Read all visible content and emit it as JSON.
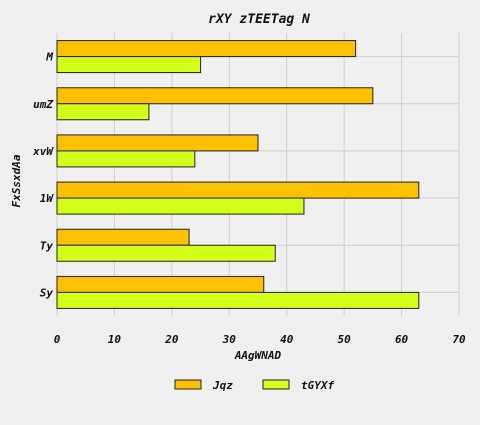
{
  "chart_data": {
    "type": "bar",
    "orientation": "horizontal",
    "title": "rXY zTEETag N",
    "xlabel": "AAgWNAD",
    "ylabel": "FxSsxdAa",
    "categories": [
      "M",
      "umZ",
      "xvW",
      "1W",
      "Ty",
      "Sy"
    ],
    "series": [
      {
        "name": "Jqz",
        "color": "#ffc000",
        "values": [
          52,
          55,
          35,
          63,
          23,
          36
        ]
      },
      {
        "name": "tGYXf",
        "color": "#d4ff1a",
        "values": [
          25,
          16,
          24,
          43,
          38,
          63
        ]
      }
    ],
    "xlim": [
      0,
      70
    ],
    "xticks": [
      0,
      10,
      20,
      30,
      40,
      50,
      60,
      70
    ],
    "grid": true,
    "legend_position": "bottom",
    "background_color": "#f0f0f0"
  }
}
